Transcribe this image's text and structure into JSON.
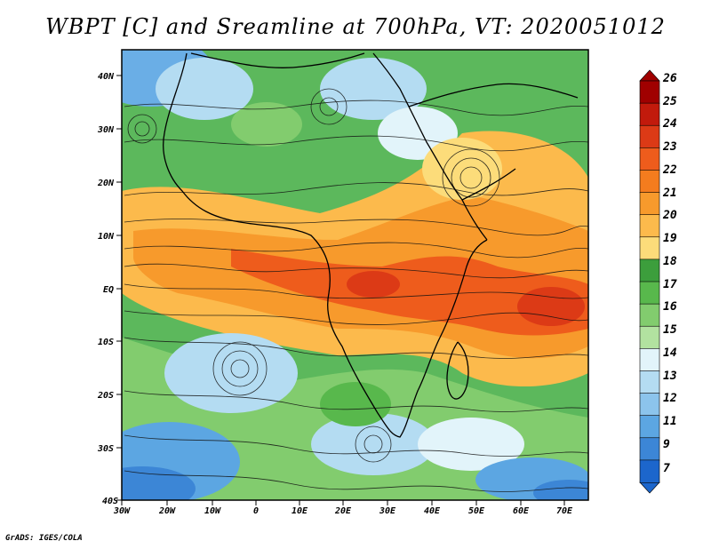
{
  "title": "WBPT [C] and Sreamline at 700hPa, VT: 2020051012",
  "credit": "GrADS: IGES/COLA",
  "map": {
    "lat_labels": [
      "40N",
      "30N",
      "20N",
      "10N",
      "EQ",
      "10S",
      "20S",
      "30S",
      "40S"
    ],
    "lon_labels": [
      "30W",
      "20W",
      "10W",
      "0",
      "10E",
      "20E",
      "30E",
      "40E",
      "50E",
      "60E",
      "70E"
    ]
  },
  "colorbar": {
    "levels": [
      "26",
      "25",
      "24",
      "23",
      "22",
      "21",
      "20",
      "19",
      "18",
      "17",
      "16",
      "15",
      "14",
      "13",
      "12",
      "11",
      "9",
      "7"
    ],
    "colors": [
      "#a00000",
      "#c21a0c",
      "#dc3a16",
      "#ee5c1c",
      "#f47c1e",
      "#f79a2c",
      "#fcba4c",
      "#fcdc7a",
      "#3c9e3c",
      "#58b84c",
      "#82cc6e",
      "#b2e2a0",
      "#e2f4fa",
      "#b4dcf2",
      "#8cc4ec",
      "#5ca6e2",
      "#3c86d6",
      "#1c66cc"
    ]
  }
}
